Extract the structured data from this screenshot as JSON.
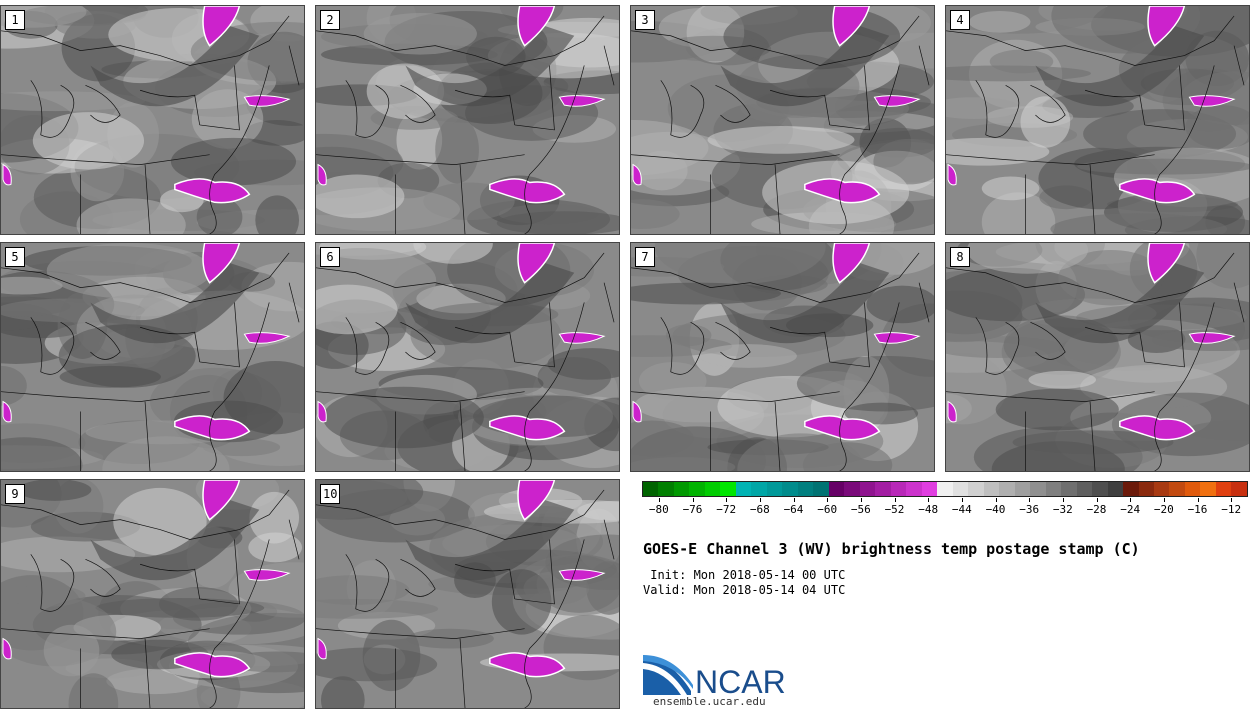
{
  "panels": [
    {
      "label": "1"
    },
    {
      "label": "2"
    },
    {
      "label": "3"
    },
    {
      "label": "4"
    },
    {
      "label": "5"
    },
    {
      "label": "6"
    },
    {
      "label": "7"
    },
    {
      "label": "8"
    },
    {
      "label": "9"
    },
    {
      "label": "10"
    }
  ],
  "colorbar": {
    "colors": [
      "#006400",
      "#007f00",
      "#009900",
      "#00b300",
      "#00cc00",
      "#00e600",
      "#00b3b3",
      "#00a6a6",
      "#009999",
      "#008c8c",
      "#007f7f",
      "#007373",
      "#660066",
      "#7a0a7a",
      "#8f148f",
      "#a31ea3",
      "#b828b8",
      "#cc33cc",
      "#e03ee0",
      "#f0f0f0",
      "#e0e0e0",
      "#d0d0d0",
      "#bfbfbf",
      "#afafaf",
      "#9f9f9f",
      "#8f8f8f",
      "#7f7f7f",
      "#6f6f6f",
      "#5f5f5f",
      "#4f4f4f",
      "#3f3f3f",
      "#6b1a0a",
      "#8a2a0e",
      "#a83a12",
      "#c24a10",
      "#e05a0c",
      "#f07010",
      "#e04010",
      "#c83010"
    ],
    "tick_labels": [
      "−80",
      "−76",
      "−72",
      "−68",
      "−64",
      "−60",
      "−56",
      "−52",
      "−48",
      "−44",
      "−40",
      "−36",
      "−32",
      "−28",
      "−24",
      "−20",
      "−16",
      "−12"
    ],
    "range": [
      -82,
      -10
    ]
  },
  "title": "GOES-E Channel 3 (WV) brightness temp postage stamp (C)",
  "init": " Init: Mon 2018-05-14 00 UTC",
  "valid": "Valid: Mon 2018-05-14 04 UTC",
  "logo_text": "NCAR",
  "site": "ensemble.ucar.edu"
}
